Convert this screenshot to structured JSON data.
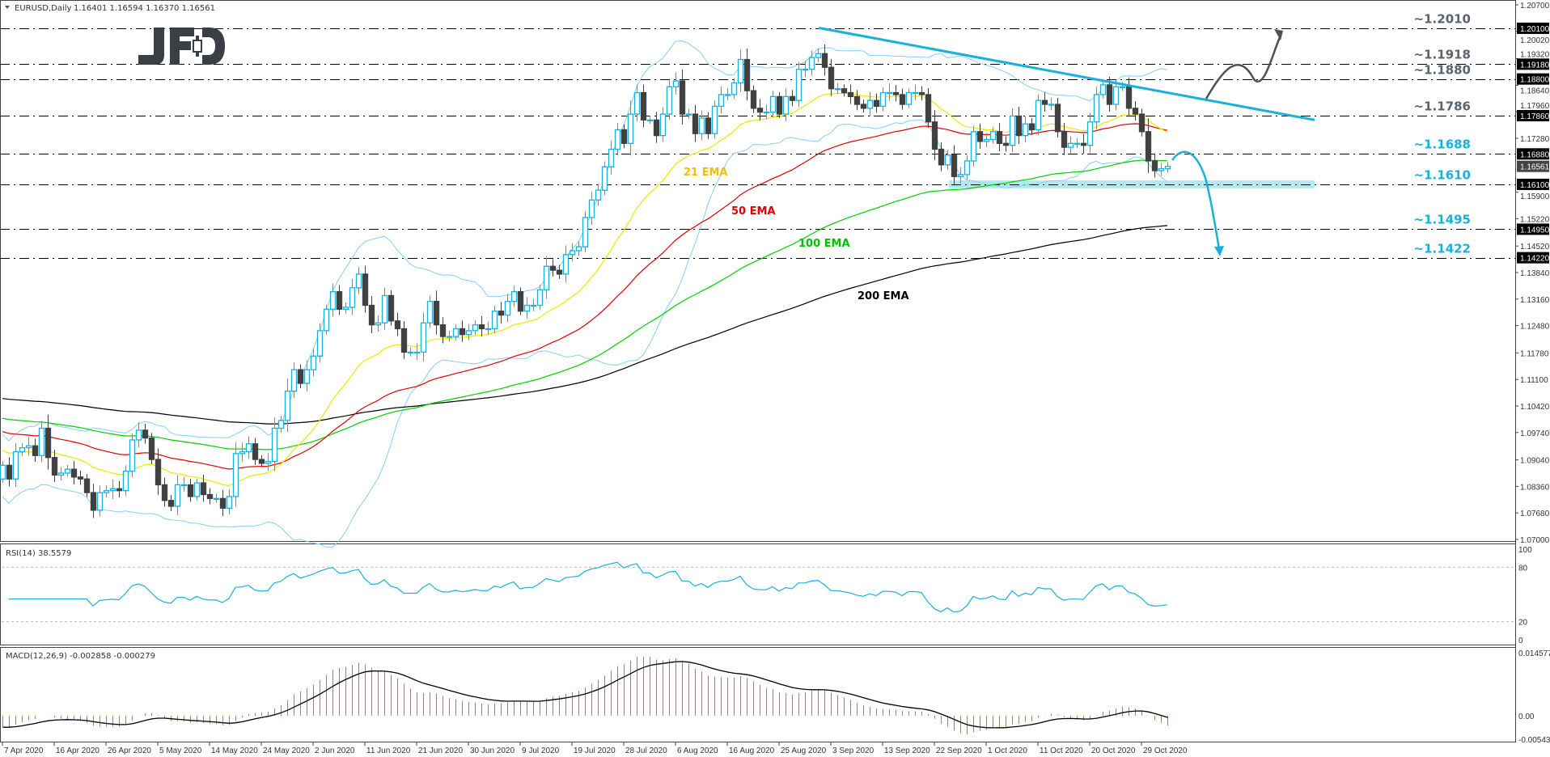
{
  "header": {
    "symbol_label": "EURUSD,Daily",
    "ohlc_label": "1.16401 1.16594 1.16370 1.16561"
  },
  "logo": {
    "text": "JFD"
  },
  "colors": {
    "bull": "#1ab0d8",
    "bear": "#404040",
    "ema21": "#f2e600",
    "ema50": "#e00000",
    "ema100": "#00d000",
    "ema200": "#000000",
    "bollinger": "#87cefa",
    "trendline": "#1ab0d8",
    "resistance_label": "#5a6470",
    "support_label": "#1ab0d8",
    "support_zone": "#aeeaf0"
  },
  "chart_data": [
    {
      "type": "candlestick",
      "title": "EURUSD,Daily",
      "ylim": [
        1.07,
        1.207
      ],
      "y_ticks": [
        "1.20700",
        "1.20020",
        "1.19320",
        "1.18640",
        "1.17960",
        "1.17280",
        "1.15900",
        "1.15220",
        "1.14520",
        "1.13840",
        "1.13160",
        "1.12480",
        "1.11780",
        "1.11100",
        "1.10420",
        "1.09740",
        "1.09040",
        "1.08360",
        "1.07680",
        "1.07000"
      ],
      "x_tick_labels": [
        "7 Apr 2020",
        "16 Apr 2020",
        "26 Apr 2020",
        "5 May 2020",
        "14 May 2020",
        "24 May 2020",
        "2 Jun 2020",
        "11 Jun 2020",
        "21 Jun 2020",
        "30 Jun 2020",
        "9 Jul 2020",
        "19 Jul 2020",
        "28 Jul 2020",
        "6 Aug 2020",
        "16 Aug 2020",
        "25 Aug 2020",
        "3 Sep 2020",
        "13 Sep 2020",
        "22 Sep 2020",
        "1 Oct 2020",
        "11 Oct 2020",
        "20 Oct 2020",
        "29 Oct 2020"
      ],
      "first_open": 1.0855,
      "close": [
        1.089,
        1.0855,
        1.0925,
        1.0935,
        1.094,
        1.0915,
        1.0985,
        1.091,
        1.0865,
        1.087,
        1.088,
        1.086,
        1.0855,
        1.082,
        1.0775,
        1.082,
        1.0825,
        1.083,
        1.0825,
        1.0875,
        1.0955,
        1.098,
        1.096,
        1.0905,
        1.084,
        1.08,
        1.0785,
        1.084,
        1.084,
        1.081,
        1.0845,
        1.0815,
        1.0805,
        1.0805,
        1.078,
        1.081,
        1.092,
        1.0925,
        1.0945,
        1.0905,
        1.0895,
        1.09,
        1.0985,
        1.1005,
        1.108,
        1.1135,
        1.11,
        1.1135,
        1.117,
        1.1235,
        1.129,
        1.1335,
        1.129,
        1.1295,
        1.1345,
        1.138,
        1.13,
        1.125,
        1.1255,
        1.1325,
        1.126,
        1.124,
        1.118,
        1.118,
        1.118,
        1.1255,
        1.131,
        1.125,
        1.122,
        1.122,
        1.124,
        1.1225,
        1.1235,
        1.125,
        1.124,
        1.124,
        1.1285,
        1.1275,
        1.131,
        1.1335,
        1.1285,
        1.13,
        1.13,
        1.134,
        1.14,
        1.139,
        1.138,
        1.143,
        1.144,
        1.145,
        1.1525,
        1.157,
        1.1595,
        1.1655,
        1.17,
        1.175,
        1.1715,
        1.179,
        1.1845,
        1.1775,
        1.1775,
        1.1735,
        1.179,
        1.186,
        1.1875,
        1.179,
        1.179,
        1.174,
        1.178,
        1.174,
        1.181,
        1.184,
        1.184,
        1.187,
        1.193,
        1.185,
        1.1805,
        1.1795,
        1.1795,
        1.1835,
        1.179,
        1.1835,
        1.1825,
        1.1905,
        1.1905,
        1.1935,
        1.1945,
        1.191,
        1.1855,
        1.1855,
        1.1845,
        1.1835,
        1.1815,
        1.1805,
        1.1825,
        1.181,
        1.1845,
        1.1845,
        1.184,
        1.1815,
        1.1845,
        1.1845,
        1.184,
        1.177,
        1.17,
        1.166,
        1.1685,
        1.163,
        1.1635,
        1.167,
        1.1745,
        1.172,
        1.1725,
        1.1745,
        1.1715,
        1.171,
        1.1785,
        1.1735,
        1.1765,
        1.175,
        1.1825,
        1.1815,
        1.1815,
        1.1745,
        1.1705,
        1.1715,
        1.1715,
        1.171,
        1.177,
        1.184,
        1.1865,
        1.1815,
        1.186,
        1.186,
        1.1805,
        1.179,
        1.1745,
        1.167,
        1.1645,
        1.165,
        1.16561
      ],
      "current_price": "1.16561",
      "indicators": [
        "EMA 21",
        "EMA 50",
        "EMA 100",
        "EMA 200",
        "Bollinger Bands(20,2)"
      ],
      "ema_labels": {
        "ema21": "21 EMA",
        "ema50": "50 EMA",
        "ema100": "100 EMA",
        "ema200": "200 EMA"
      },
      "levels": [
        {
          "value": 1.201,
          "label": "~1.2010",
          "box": "1.20100",
          "kind": "resistance"
        },
        {
          "value": 1.1918,
          "label": "~1.1918",
          "box": "1.19180",
          "kind": "resistance"
        },
        {
          "value": 1.188,
          "label": "~1.1880",
          "box": "1.18800",
          "kind": "resistance"
        },
        {
          "value": 1.1786,
          "label": "~1.1786",
          "box": "1.17860",
          "kind": "resistance"
        },
        {
          "value": 1.1688,
          "label": "~1.1688",
          "box": "1.16880",
          "kind": "support"
        },
        {
          "value": 1.161,
          "label": "~1.1610",
          "box": "1.16100",
          "kind": "support"
        },
        {
          "value": 1.1495,
          "label": "~1.1495",
          "box": "1.14950",
          "kind": "support"
        },
        {
          "value": 1.1422,
          "label": "~1.1422",
          "box": "1.14220",
          "kind": "support"
        }
      ],
      "trendline": {
        "from": {
          "date": "1 Sep 2020",
          "price": 1.2011
        },
        "to_price": 1.1775
      },
      "support_zone": [
        1.16,
        1.162
      ]
    },
    {
      "type": "line",
      "title": "RSI(14) 38.5579",
      "ylim": [
        0,
        100
      ],
      "y_ticks": [
        "100",
        "80",
        "20",
        "0"
      ],
      "levels": [
        80,
        20
      ]
    },
    {
      "type": "bar",
      "title": "MACD(12,26,9) -0.002858 -0.000279",
      "ylim": [
        -0.005434,
        0.014577
      ],
      "y_ticks": [
        "0.014577",
        "0.00",
        "-0.005434"
      ]
    }
  ]
}
